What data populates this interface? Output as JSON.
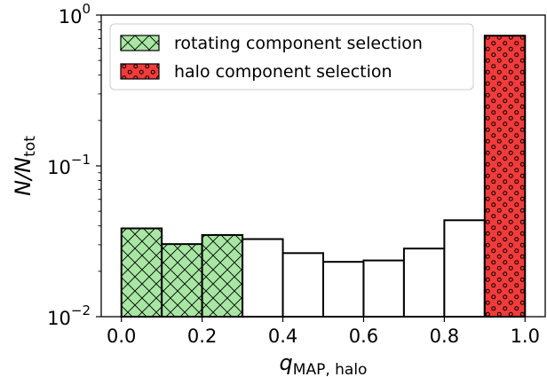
{
  "chart_data": {
    "type": "bar",
    "xlabel": {
      "main": "q",
      "sub": "MAP, halo"
    },
    "ylabel": {
      "main": "N/N",
      "sub": "tot"
    },
    "x_scale": "linear",
    "y_scale": "log",
    "xlim": [
      -0.05,
      1.05
    ],
    "ylim": [
      0.01,
      1.0
    ],
    "x_ticks": [
      {
        "value": 0.0,
        "label": "0.0"
      },
      {
        "value": 0.2,
        "label": "0.2"
      },
      {
        "value": 0.4,
        "label": "0.4"
      },
      {
        "value": 0.6,
        "label": "0.6"
      },
      {
        "value": 0.8,
        "label": "0.8"
      },
      {
        "value": 1.0,
        "label": "1.0"
      }
    ],
    "y_ticks": [
      {
        "value": 0.01,
        "base": "10",
        "exp": "−2"
      },
      {
        "value": 0.1,
        "base": "10",
        "exp": "−1"
      },
      {
        "value": 1.0,
        "base": "10",
        "exp": "0"
      }
    ],
    "grid": false,
    "legend_position": "top-left",
    "series": [
      {
        "name": "rotating component selection",
        "color": "#a8e6a3",
        "hatch": "cross",
        "bins": [
          {
            "x0": 0.0,
            "x1": 0.1,
            "value": 0.0385
          },
          {
            "x0": 0.1,
            "x1": 0.2,
            "value": 0.0303
          },
          {
            "x0": 0.2,
            "x1": 0.3,
            "value": 0.0348
          }
        ]
      },
      {
        "color": "#ffffff",
        "hatch": "none",
        "bins": [
          {
            "x0": 0.3,
            "x1": 0.4,
            "value": 0.0327
          },
          {
            "x0": 0.4,
            "x1": 0.5,
            "value": 0.0264
          },
          {
            "x0": 0.5,
            "x1": 0.6,
            "value": 0.0231
          },
          {
            "x0": 0.6,
            "x1": 0.7,
            "value": 0.0236
          },
          {
            "x0": 0.7,
            "x1": 0.8,
            "value": 0.0283
          },
          {
            "x0": 0.8,
            "x1": 0.9,
            "value": 0.0436
          }
        ]
      },
      {
        "name": "halo component selection",
        "color": "#f23b3b",
        "hatch": "dots",
        "bins": [
          {
            "x0": 0.9,
            "x1": 1.0,
            "value": 0.73
          }
        ]
      }
    ]
  }
}
